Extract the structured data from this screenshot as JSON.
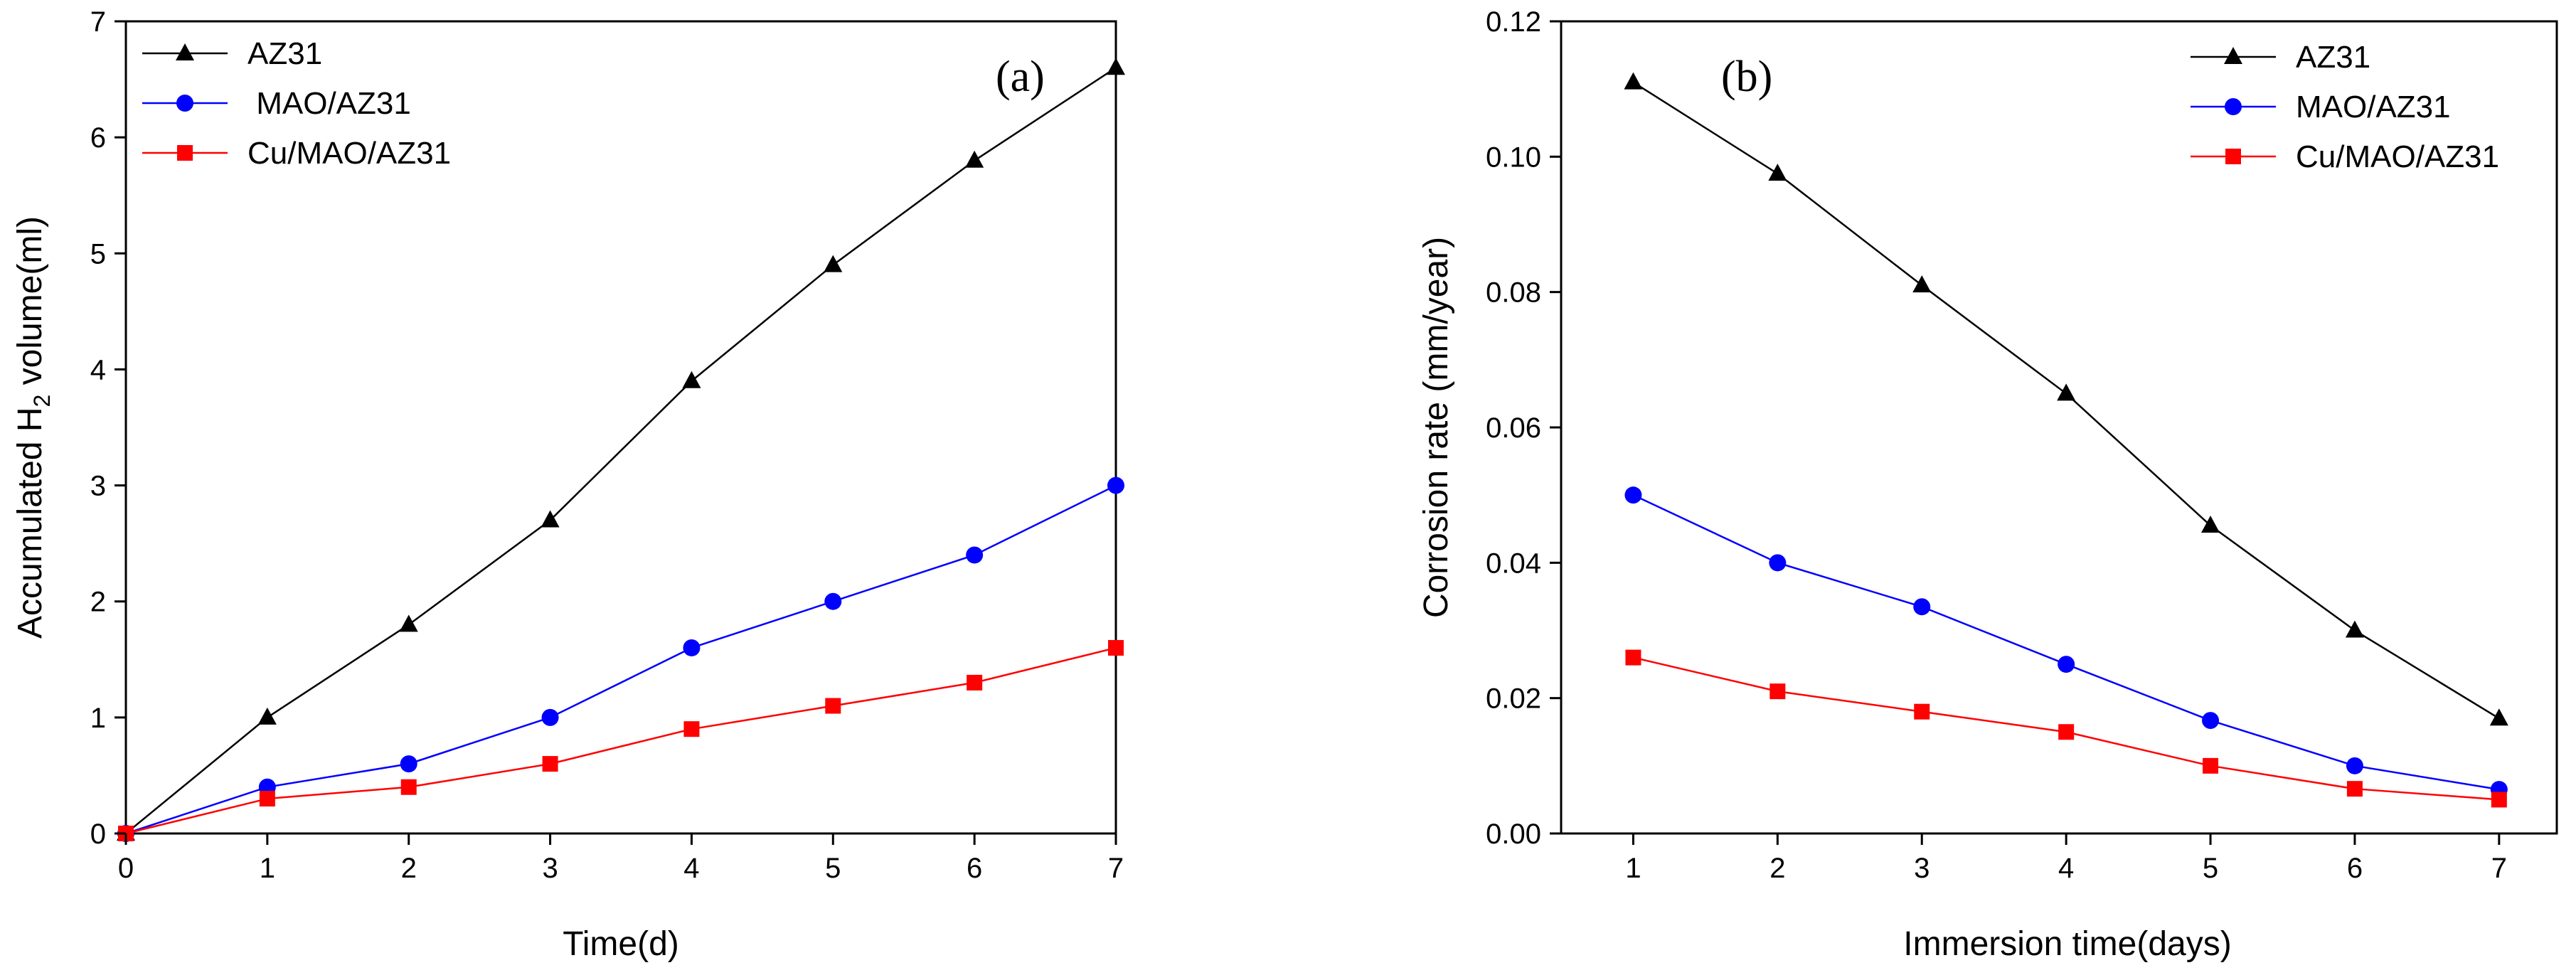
{
  "colors": {
    "AZ31": "#000000",
    "MAO/AZ31": "#0000ff",
    "Cu/MAO/AZ31": "#ff0000",
    "axis": "#000000"
  },
  "chart_data": [
    {
      "type": "line",
      "panel_label": "(a)",
      "title": "",
      "xlabel": "Time(d)",
      "ylabel": {
        "prefix": "Accumulated H",
        "subscript": "2",
        "suffix": " volume(ml)"
      },
      "xlim": [
        0,
        7
      ],
      "ylim": [
        0,
        7
      ],
      "xticks": [
        0,
        1,
        2,
        3,
        4,
        5,
        6,
        7
      ],
      "yticks": [
        0,
        1,
        2,
        3,
        4,
        5,
        6,
        7
      ],
      "x_tick_labels": [
        "0",
        "1",
        "2",
        "3",
        "4",
        "5",
        "6",
        "7"
      ],
      "y_tick_labels": [
        "0",
        "1",
        "2",
        "3",
        "4",
        "5",
        "6",
        "7"
      ],
      "grid": false,
      "legend_position": "top-left",
      "x": [
        0,
        1,
        2,
        3,
        4,
        5,
        6,
        7
      ],
      "series": [
        {
          "name": "AZ31",
          "legend_label": "AZ31",
          "marker": "triangle",
          "color": "#000000",
          "values": [
            0,
            1.0,
            1.8,
            2.7,
            3.9,
            4.9,
            5.8,
            6.6
          ]
        },
        {
          "name": "MAO/AZ31",
          "legend_label": " MAO/AZ31",
          "marker": "circle",
          "color": "#0000ff",
          "values": [
            0,
            0.4,
            0.6,
            1.0,
            1.6,
            2.0,
            2.4,
            3.0
          ]
        },
        {
          "name": "Cu/MAO/AZ31",
          "legend_label": "Cu/MAO/AZ31",
          "marker": "square",
          "color": "#ff0000",
          "values": [
            0,
            0.3,
            0.4,
            0.6,
            0.9,
            1.1,
            1.3,
            1.6
          ]
        }
      ]
    },
    {
      "type": "line",
      "panel_label": "(b)",
      "title": "",
      "xlabel": "Immersion time(days)",
      "ylabel": "Corrosion rate (mm/year)",
      "xlim": [
        0.5,
        7.4
      ],
      "ylim": [
        0,
        0.12
      ],
      "xticks": [
        1,
        2,
        3,
        4,
        5,
        6,
        7
      ],
      "yticks": [
        0,
        0.02,
        0.04,
        0.06,
        0.08,
        0.1,
        0.12
      ],
      "x_tick_labels": [
        "1",
        "2",
        "3",
        "4",
        "5",
        "6",
        "7"
      ],
      "y_tick_labels": [
        "0.00",
        "0.02",
        "0.04",
        "0.06",
        "0.08",
        "0.10",
        "0.12"
      ],
      "grid": false,
      "legend_position": "top-right",
      "x": [
        1,
        2,
        3,
        4,
        5,
        6,
        7
      ],
      "series": [
        {
          "name": "AZ31",
          "legend_label": "AZ31",
          "marker": "triangle",
          "color": "#000000",
          "values": [
            0.111,
            0.0975,
            0.081,
            0.065,
            0.0455,
            0.03,
            0.017
          ]
        },
        {
          "name": "MAO/AZ31",
          "legend_label": "MAO/AZ31",
          "marker": "circle",
          "color": "#0000ff",
          "values": [
            0.05,
            0.04,
            0.0335,
            0.025,
            0.0167,
            0.01,
            0.0065
          ]
        },
        {
          "name": "Cu/MAO/AZ31",
          "legend_label": "Cu/MAO/AZ31",
          "marker": "square",
          "color": "#ff0000",
          "values": [
            0.026,
            0.021,
            0.018,
            0.015,
            0.01,
            0.0066,
            0.005
          ]
        }
      ]
    }
  ]
}
